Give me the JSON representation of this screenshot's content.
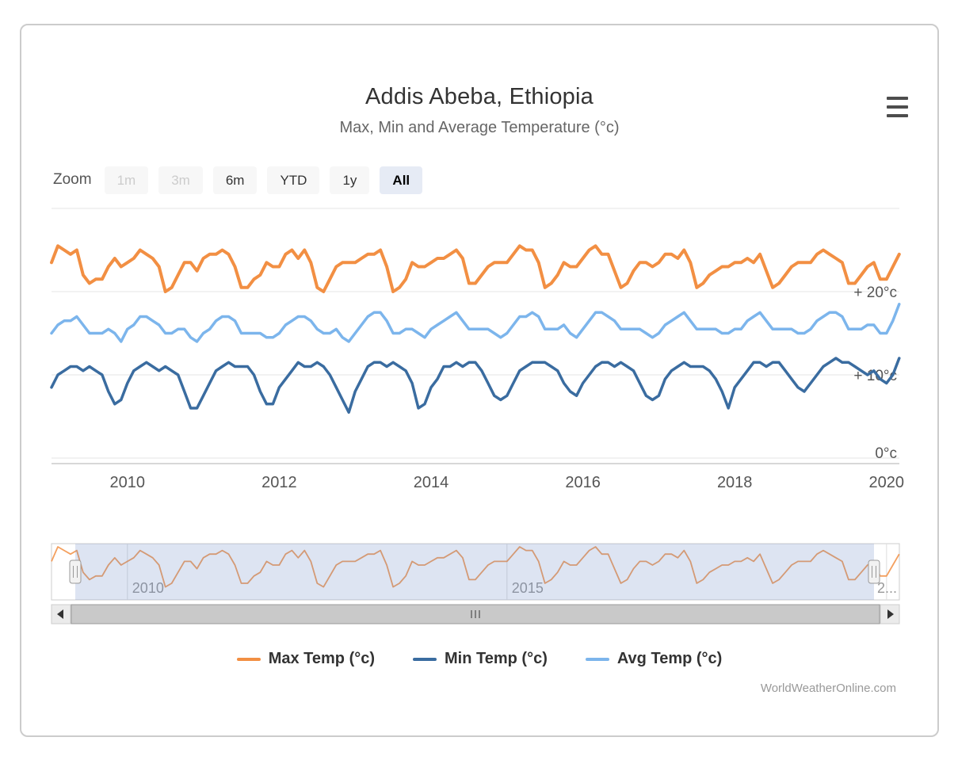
{
  "header": {
    "title": "Addis Abeba, Ethiopia",
    "subtitle": "Max, Min and Average Temperature (°c)"
  },
  "range_selector": {
    "zoom_label": "Zoom",
    "buttons": [
      {
        "label": "1m",
        "state": "disabled"
      },
      {
        "label": "3m",
        "state": "disabled"
      },
      {
        "label": "6m",
        "state": "normal"
      },
      {
        "label": "YTD",
        "state": "normal"
      },
      {
        "label": "1y",
        "state": "normal"
      },
      {
        "label": "All",
        "state": "selected"
      }
    ]
  },
  "chart_data": {
    "type": "line",
    "title": "Addis Abeba, Ethiopia",
    "subtitle": "Max, Min and Average Temperature (°c)",
    "x_start": "2009-01",
    "x_interval": "monthly",
    "x_range_years": [
      2009.0,
      2020.17
    ],
    "ylim": [
      0,
      27
    ],
    "grid": true,
    "legend_position": "bottom",
    "yticks": [
      {
        "v": 0,
        "label": "0°c"
      },
      {
        "v": 10,
        "label": "+ 10°c"
      },
      {
        "v": 20,
        "label": "+ 20°c"
      },
      {
        "v": 30,
        "label": ""
      }
    ],
    "xticks": [
      {
        "t": 2010,
        "label": "2010"
      },
      {
        "t": 2012,
        "label": "2012"
      },
      {
        "t": 2014,
        "label": "2014"
      },
      {
        "t": 2016,
        "label": "2016"
      },
      {
        "t": 2018,
        "label": "2018"
      },
      {
        "t": 2020,
        "label": "2020"
      }
    ],
    "series": [
      {
        "name": "Max Temp (°c)",
        "color": "#f28f43",
        "values": [
          23.5,
          25.5,
          25.0,
          24.5,
          25.0,
          22.0,
          21.0,
          21.5,
          21.5,
          23.0,
          24.0,
          23.0,
          23.5,
          24.0,
          25.0,
          24.5,
          24.0,
          23.0,
          20.0,
          20.5,
          22.0,
          23.5,
          23.5,
          22.5,
          24.0,
          24.5,
          24.5,
          25.0,
          24.5,
          23.0,
          20.5,
          20.5,
          21.5,
          22.0,
          23.5,
          23.0,
          23.0,
          24.5,
          25.0,
          24.0,
          25.0,
          23.5,
          20.5,
          20.0,
          21.5,
          23.0,
          23.5,
          23.5,
          23.5,
          24.0,
          24.5,
          24.5,
          25.0,
          23.0,
          20.0,
          20.5,
          21.5,
          23.5,
          23.0,
          23.0,
          23.5,
          24.0,
          24.0,
          24.5,
          25.0,
          24.0,
          21.0,
          21.0,
          22.0,
          23.0,
          23.5,
          23.5,
          23.5,
          24.5,
          25.5,
          25.0,
          25.0,
          23.5,
          20.5,
          21.0,
          22.0,
          23.5,
          23.0,
          23.0,
          24.0,
          25.0,
          25.5,
          24.5,
          24.5,
          22.5,
          20.5,
          21.0,
          22.5,
          23.5,
          23.5,
          23.0,
          23.5,
          24.5,
          24.5,
          24.0,
          25.0,
          23.5,
          20.5,
          21.0,
          22.0,
          22.5,
          23.0,
          23.0,
          23.5,
          23.5,
          24.0,
          23.5,
          24.5,
          22.5,
          20.5,
          21.0,
          22.0,
          23.0,
          23.5,
          23.5,
          23.5,
          24.5,
          25.0,
          24.5,
          24.0,
          23.5,
          21.0,
          21.0,
          22.0,
          23.0,
          23.5,
          21.5,
          21.5,
          23.0,
          24.5
        ]
      },
      {
        "name": "Min Temp (°c)",
        "color": "#3a6ca0",
        "values": [
          8.5,
          10.0,
          10.5,
          11.0,
          11.0,
          10.5,
          11.0,
          10.5,
          10.0,
          8.0,
          6.5,
          7.0,
          9.0,
          10.5,
          11.0,
          11.5,
          11.0,
          10.5,
          11.0,
          10.5,
          10.0,
          8.0,
          6.0,
          6.0,
          7.5,
          9.0,
          10.5,
          11.0,
          11.5,
          11.0,
          11.0,
          11.0,
          10.0,
          8.0,
          6.5,
          6.5,
          8.5,
          9.5,
          10.5,
          11.5,
          11.0,
          11.0,
          11.5,
          11.0,
          10.0,
          8.5,
          7.0,
          5.5,
          8.0,
          9.5,
          11.0,
          11.5,
          11.5,
          11.0,
          11.5,
          11.0,
          10.5,
          9.0,
          6.0,
          6.5,
          8.5,
          9.5,
          11.0,
          11.0,
          11.5,
          11.0,
          11.5,
          11.5,
          10.5,
          9.0,
          7.5,
          7.0,
          7.5,
          9.0,
          10.5,
          11.0,
          11.5,
          11.5,
          11.5,
          11.0,
          10.5,
          9.0,
          8.0,
          7.5,
          9.0,
          10.0,
          11.0,
          11.5,
          11.5,
          11.0,
          11.5,
          11.0,
          10.5,
          9.0,
          7.5,
          7.0,
          7.5,
          9.5,
          10.5,
          11.0,
          11.5,
          11.0,
          11.0,
          11.0,
          10.5,
          9.5,
          8.0,
          6.0,
          8.5,
          9.5,
          10.5,
          11.5,
          11.5,
          11.0,
          11.5,
          11.5,
          10.5,
          9.5,
          8.5,
          8.0,
          9.0,
          10.0,
          11.0,
          11.5,
          12.0,
          11.5,
          11.5,
          11.0,
          10.5,
          10.0,
          10.5,
          9.5,
          9.0,
          10.0,
          12.0
        ]
      },
      {
        "name": "Avg Temp (°c)",
        "color": "#7cb5ec",
        "values": [
          15.0,
          16.0,
          16.5,
          16.5,
          17.0,
          16.0,
          15.0,
          15.0,
          15.0,
          15.5,
          15.0,
          14.0,
          15.5,
          16.0,
          17.0,
          17.0,
          16.5,
          16.0,
          15.0,
          15.0,
          15.5,
          15.5,
          14.5,
          14.0,
          15.0,
          15.5,
          16.5,
          17.0,
          17.0,
          16.5,
          15.0,
          15.0,
          15.0,
          15.0,
          14.5,
          14.5,
          15.0,
          16.0,
          16.5,
          17.0,
          17.0,
          16.5,
          15.5,
          15.0,
          15.0,
          15.5,
          14.5,
          14.0,
          15.0,
          16.0,
          17.0,
          17.5,
          17.5,
          16.5,
          15.0,
          15.0,
          15.5,
          15.5,
          15.0,
          14.5,
          15.5,
          16.0,
          16.5,
          17.0,
          17.5,
          16.5,
          15.5,
          15.5,
          15.5,
          15.5,
          15.0,
          14.5,
          15.0,
          16.0,
          17.0,
          17.0,
          17.5,
          17.0,
          15.5,
          15.5,
          15.5,
          16.0,
          15.0,
          14.5,
          15.5,
          16.5,
          17.5,
          17.5,
          17.0,
          16.5,
          15.5,
          15.5,
          15.5,
          15.5,
          15.0,
          14.5,
          15.0,
          16.0,
          16.5,
          17.0,
          17.5,
          16.5,
          15.5,
          15.5,
          15.5,
          15.5,
          15.0,
          15.0,
          15.5,
          15.5,
          16.5,
          17.0,
          17.5,
          16.5,
          15.5,
          15.5,
          15.5,
          15.5,
          15.0,
          15.0,
          15.5,
          16.5,
          17.0,
          17.5,
          17.5,
          17.0,
          15.5,
          15.5,
          15.5,
          16.0,
          16.0,
          15.0,
          15.0,
          16.5,
          18.5
        ]
      }
    ],
    "navigator": {
      "shows_series": "Max Temp (°c)",
      "xticks": [
        {
          "t": 2010,
          "label": "2010"
        },
        {
          "t": 2015,
          "label": "2015"
        },
        {
          "t": 2020,
          "label": "2..."
        }
      ]
    }
  },
  "credit": "WorldWeatherOnline.com"
}
